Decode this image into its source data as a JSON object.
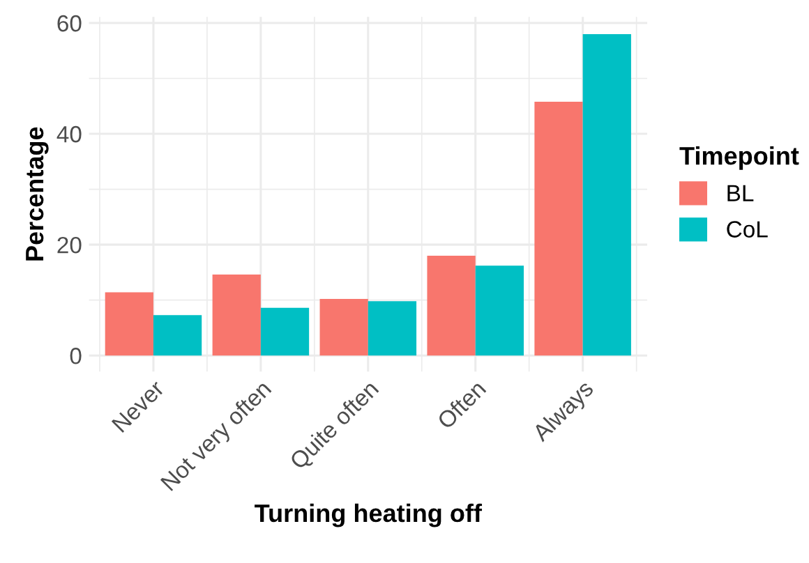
{
  "chart_data": {
    "type": "bar",
    "xlabel": "Turning heating off",
    "ylabel": "Percentage",
    "legend_title": "Timepoint",
    "categories": [
      "Never",
      "Not very often",
      "Quite often",
      "Often",
      "Always"
    ],
    "series": [
      {
        "name": "BL",
        "color": "#f8766d",
        "values": [
          11.4,
          14.6,
          10.2,
          18.0,
          45.8
        ]
      },
      {
        "name": "CoL",
        "color": "#00bfc4",
        "values": [
          7.3,
          8.6,
          9.8,
          16.2,
          58.0
        ]
      }
    ],
    "ylim": [
      -2.9,
      61.1
    ],
    "yticks": [
      0,
      20,
      40,
      60
    ],
    "grid": true,
    "legend": "right"
  }
}
